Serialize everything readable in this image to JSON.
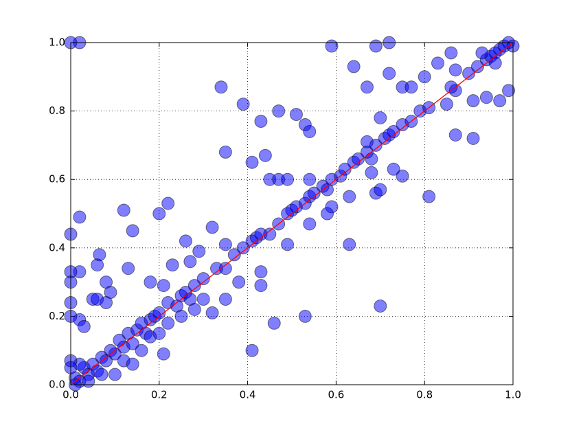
{
  "chart_data": {
    "type": "scatter",
    "xlim": [
      0,
      1
    ],
    "ylim": [
      0,
      1
    ],
    "xticks": [
      {
        "value": 0,
        "label": "0.0"
      },
      0.2,
      0.4,
      0.6,
      0.8,
      {
        "value": 1,
        "label": "1.0"
      }
    ],
    "yticks": [
      {
        "value": 0,
        "label": "0.0"
      },
      0.2,
      0.4,
      0.6,
      0.8,
      {
        "value": 1,
        "label": "1.0"
      }
    ],
    "grid": true,
    "series": [
      {
        "type": "scatter",
        "color": "#0000ff",
        "x": [
          0,
          0.02,
          0.59,
          0.69,
          0.72,
          0.34,
          0.39,
          0.64,
          0.67,
          0.72,
          0.47,
          0.43,
          0.51,
          0.53,
          0.54,
          0.35,
          0.44,
          0.41,
          0.45,
          0.47,
          0.49,
          0.54,
          0.02,
          0.12,
          0.14,
          0.2,
          0.22,
          0.26,
          0.32,
          0.35,
          0.29,
          0.27,
          0.13,
          0.065,
          0.06,
          0.02,
          0,
          0,
          0.08,
          0.09,
          0.05,
          0.06,
          0.08,
          0.18,
          0.21,
          0.23,
          0.38,
          0.43,
          0.43,
          0.35,
          0.32,
          0.46,
          0.53,
          0.41,
          0.21,
          0.7,
          0,
          0,
          0,
          0.02,
          0.03,
          0.69,
          0.7,
          0.75,
          0.73,
          0.81,
          0.63,
          0.63,
          0.59,
          0.58,
          0.49,
          0.54,
          0.67,
          0.7,
          0.75,
          0.77,
          0.8,
          0.83,
          0.86,
          0.87,
          0.87,
          0.91,
          0.91,
          0.94,
          0.97,
          0.99,
          0.85,
          0.87,
          0.68,
          0.68,
          0.01,
          0.02,
          0.03,
          0.04,
          0.05,
          0.06,
          0.07,
          0.08,
          0.09,
          0.1,
          0.11,
          0.12,
          0.13,
          0.14,
          0.15,
          0.16,
          0.17,
          0.18,
          0.19,
          0.2,
          0.22,
          0.24,
          0.25,
          0.26,
          0.27,
          0.28,
          0.3,
          0.33,
          0.35,
          0.37,
          0.39,
          0.41,
          0.42,
          0.43,
          0.45,
          0.47,
          0.49,
          0.5,
          0.51,
          0.53,
          0.54,
          0.55,
          0.57,
          0.58,
          0.59,
          0.61,
          0.62,
          0.64,
          0.65,
          0.67,
          0.69,
          0.71,
          0.72,
          0.73,
          0.75,
          0.77,
          0.79,
          0.81,
          0.86,
          0.9,
          0.92,
          0.94,
          0.95,
          0.96,
          0.97,
          0.98,
          0.99,
          1,
          0.96,
          0.93,
          0.02,
          0.04,
          0.07,
          0.1,
          0.12,
          0.14,
          0.16,
          0.18,
          0.2,
          0.22,
          0.25,
          0.28,
          0.3,
          0,
          0,
          0.01
        ],
        "values": [
          1,
          1,
          0.99,
          0.99,
          1,
          0.87,
          0.82,
          0.93,
          0.87,
          0.91,
          0.8,
          0.77,
          0.79,
          0.76,
          0.74,
          0.68,
          0.67,
          0.65,
          0.6,
          0.6,
          0.6,
          0.6,
          0.49,
          0.51,
          0.45,
          0.5,
          0.53,
          0.42,
          0.46,
          0.41,
          0.39,
          0.36,
          0.34,
          0.38,
          0.35,
          0.33,
          0.33,
          0.3,
          0.3,
          0.27,
          0.25,
          0.25,
          0.24,
          0.3,
          0.29,
          0.35,
          0.3,
          0.33,
          0.29,
          0.25,
          0.21,
          0.18,
          0.2,
          0.1,
          0.09,
          0.23,
          0.44,
          0.2,
          0.24,
          0.19,
          0.17,
          0.56,
          0.57,
          0.61,
          0.63,
          0.55,
          0.41,
          0.55,
          0.52,
          0.5,
          0.41,
          0.47,
          0.71,
          0.78,
          0.87,
          0.87,
          0.9,
          0.94,
          0.97,
          0.92,
          0.73,
          0.72,
          0.83,
          0.84,
          0.83,
          0.86,
          0.82,
          0.86,
          0.66,
          0.62,
          0.02,
          0.01,
          0.05,
          0.03,
          0.06,
          0.04,
          0.08,
          0.07,
          0.1,
          0.09,
          0.13,
          0.11,
          0.15,
          0.12,
          0.16,
          0.18,
          0.15,
          0.19,
          0.2,
          0.21,
          0.24,
          0.23,
          0.26,
          0.27,
          0.25,
          0.29,
          0.31,
          0.34,
          0.34,
          0.38,
          0.4,
          0.42,
          0.43,
          0.44,
          0.44,
          0.47,
          0.5,
          0.51,
          0.52,
          0.53,
          0.55,
          0.56,
          0.58,
          0.57,
          0.6,
          0.61,
          0.63,
          0.65,
          0.66,
          0.68,
          0.7,
          0.72,
          0.73,
          0.74,
          0.76,
          0.77,
          0.8,
          0.81,
          0.87,
          0.91,
          0.93,
          0.95,
          0.96,
          0.97,
          0.98,
          0.99,
          1,
          0.99,
          0.94,
          0.97,
          0.06,
          0.01,
          0.03,
          0.03,
          0.07,
          0.06,
          0.1,
          0.14,
          0.15,
          0.18,
          0.2,
          0.22,
          0.25,
          0.07,
          0.05,
          0
        ]
      },
      {
        "type": "line",
        "color": "#ff0000",
        "x": [
          0,
          1
        ],
        "values": [
          0,
          1
        ]
      }
    ]
  }
}
